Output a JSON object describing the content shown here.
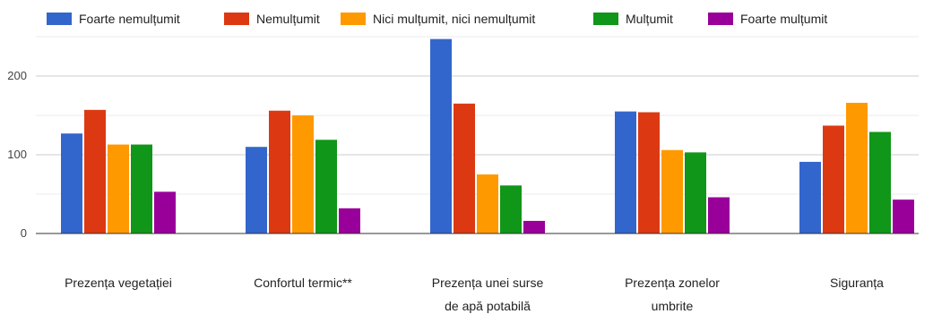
{
  "chart_data": {
    "type": "bar",
    "title": "",
    "xlabel": "",
    "ylabel": "",
    "categories": [
      [
        "Prezența vegetației"
      ],
      [
        "Confortul termic**"
      ],
      [
        "Prezența unei surse",
        "de apă potabilă"
      ],
      [
        "Prezența zonelor",
        "umbrite"
      ],
      [
        "Siguranța"
      ]
    ],
    "series": [
      {
        "name": "Foarte nemulțumit",
        "color": "#3366cc",
        "values": [
          127,
          110,
          247,
          155,
          91
        ]
      },
      {
        "name": "Nemulțumit",
        "color": "#dc3912",
        "values": [
          157,
          156,
          165,
          154,
          137
        ]
      },
      {
        "name": "Nici mulțumit, nici nemulțumit",
        "color": "#ff9900",
        "values": [
          113,
          150,
          75,
          106,
          166
        ]
      },
      {
        "name": "Mulțumit",
        "color": "#109618",
        "values": [
          113,
          119,
          61,
          103,
          129
        ]
      },
      {
        "name": "Foarte mulțumit",
        "color": "#990099",
        "values": [
          53,
          32,
          16,
          46,
          43
        ]
      }
    ],
    "ylim": [
      0,
      250
    ],
    "yticks": [
      0,
      100,
      200
    ],
    "grid": true,
    "legend_position": "top"
  }
}
